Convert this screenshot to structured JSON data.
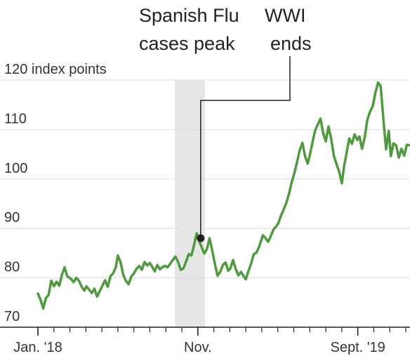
{
  "chart_data": {
    "type": "line",
    "title": "",
    "xlabel": "",
    "ylabel": "",
    "y_axis_unit_label": "120 index points",
    "ylim": [
      70,
      120
    ],
    "yticks": [
      {
        "value": 120,
        "label": "120 index points"
      },
      {
        "value": 110,
        "label": "110"
      },
      {
        "value": 100,
        "label": "100"
      },
      {
        "value": 90,
        "label": "90"
      },
      {
        "value": 80,
        "label": "80"
      },
      {
        "value": 70,
        "label": "70"
      }
    ],
    "x_tick_labels": [
      {
        "date": "1918-01",
        "label": "Jan. '18"
      },
      {
        "date": "1918-11",
        "label": "Nov."
      },
      {
        "date": "1919-09",
        "label": "Sept. '19"
      }
    ],
    "x_minor_ticks": [
      "1918-01",
      "1918-02",
      "1918-03",
      "1918-04",
      "1918-05",
      "1918-06",
      "1918-07",
      "1918-08",
      "1918-09",
      "1918-10",
      "1918-11",
      "1918-12",
      "1919-01",
      "1919-02",
      "1919-03",
      "1919-04",
      "1919-05",
      "1919-06",
      "1919-07",
      "1919-08",
      "1919-09",
      "1919-10",
      "1919-11",
      "1919-12"
    ],
    "xlim": [
      "1918-01",
      "1919-12"
    ],
    "grid": true,
    "line_color": "#4f9a3e",
    "shade_color": "#e6e6e6",
    "shaded_period": {
      "start": "1918-10",
      "end": "1918-11"
    },
    "annotations": [
      {
        "text": [
          "Spanish Flu",
          "cases peak"
        ],
        "date": "1918-10"
      },
      {
        "text": [
          "WWI",
          "ends"
        ],
        "date": "1918-11",
        "marker_value": 88
      }
    ],
    "series": [
      {
        "values": [
          [
            "1918-01-01",
            76.8
          ],
          [
            "1918-01-06",
            75.5
          ],
          [
            "1918-01-11",
            73.8
          ],
          [
            "1918-01-16",
            75.9
          ],
          [
            "1918-01-21",
            76.5
          ],
          [
            "1918-01-26",
            79.4
          ],
          [
            "1918-02-01",
            78.3
          ],
          [
            "1918-02-06",
            79.2
          ],
          [
            "1918-02-11",
            78.4
          ],
          [
            "1918-02-16",
            80.6
          ],
          [
            "1918-02-21",
            82.1
          ],
          [
            "1918-02-26",
            80.3
          ],
          [
            "1918-03-03",
            79.8
          ],
          [
            "1918-03-08",
            79.1
          ],
          [
            "1918-03-13",
            80.0
          ],
          [
            "1918-03-18",
            79.4
          ],
          [
            "1918-03-23",
            78.2
          ],
          [
            "1918-03-28",
            77.4
          ],
          [
            "1918-04-02",
            78.3
          ],
          [
            "1918-04-07",
            77.6
          ],
          [
            "1918-04-12",
            76.9
          ],
          [
            "1918-04-17",
            77.8
          ],
          [
            "1918-04-22",
            76.2
          ],
          [
            "1918-04-27",
            77.3
          ],
          [
            "1918-05-02",
            78.4
          ],
          [
            "1918-05-07",
            79.5
          ],
          [
            "1918-05-12",
            78.2
          ],
          [
            "1918-05-17",
            80.3
          ],
          [
            "1918-05-22",
            80.9
          ],
          [
            "1918-05-27",
            82.1
          ],
          [
            "1918-06-01",
            84.5
          ],
          [
            "1918-06-06",
            83.2
          ],
          [
            "1918-06-11",
            80.6
          ],
          [
            "1918-06-16",
            79.4
          ],
          [
            "1918-06-21",
            78.7
          ],
          [
            "1918-06-26",
            80.2
          ],
          [
            "1918-07-01",
            80.9
          ],
          [
            "1918-07-06",
            81.8
          ],
          [
            "1918-07-11",
            82.4
          ],
          [
            "1918-07-16",
            81.6
          ],
          [
            "1918-07-21",
            83.2
          ],
          [
            "1918-07-26",
            82.5
          ],
          [
            "1918-07-31",
            83.0
          ],
          [
            "1918-08-05",
            82.3
          ],
          [
            "1918-08-10",
            81.3
          ],
          [
            "1918-08-15",
            82.6
          ],
          [
            "1918-08-20",
            81.7
          ],
          [
            "1918-08-25",
            82.2
          ],
          [
            "1918-08-30",
            82.4
          ],
          [
            "1918-09-04",
            82.1
          ],
          [
            "1918-09-09",
            82.8
          ],
          [
            "1918-09-14",
            83.6
          ],
          [
            "1918-09-19",
            84.3
          ],
          [
            "1918-09-24",
            83.2
          ],
          [
            "1918-09-29",
            81.6
          ],
          [
            "1918-10-04",
            81.9
          ],
          [
            "1918-10-09",
            83.3
          ],
          [
            "1918-10-14",
            84.8
          ],
          [
            "1918-10-19",
            84.5
          ],
          [
            "1918-10-24",
            86.7
          ],
          [
            "1918-10-29",
            89.0
          ],
          [
            "1918-11-03",
            87.6
          ],
          [
            "1918-11-08",
            86.2
          ],
          [
            "1918-11-13",
            84.9
          ],
          [
            "1918-11-18",
            85.8
          ],
          [
            "1918-11-23",
            88.0
          ],
          [
            "1918-11-28",
            85.5
          ],
          [
            "1918-12-03",
            82.8
          ],
          [
            "1918-12-08",
            80.4
          ],
          [
            "1918-12-13",
            81.2
          ],
          [
            "1918-12-18",
            82.6
          ],
          [
            "1918-12-23",
            83.1
          ],
          [
            "1918-12-28",
            81.4
          ],
          [
            "1919-01-02",
            81.9
          ],
          [
            "1919-01-07",
            83.6
          ],
          [
            "1919-01-12",
            81.8
          ],
          [
            "1919-01-17",
            80.5
          ],
          [
            "1919-01-22",
            81.2
          ],
          [
            "1919-01-27",
            80.3
          ],
          [
            "1919-02-01",
            79.7
          ],
          [
            "1919-02-06",
            81.4
          ],
          [
            "1919-02-11",
            82.9
          ],
          [
            "1919-02-16",
            84.8
          ],
          [
            "1919-02-21",
            85.1
          ],
          [
            "1919-02-26",
            86.3
          ],
          [
            "1919-03-03",
            88.6
          ],
          [
            "1919-03-08",
            88.0
          ],
          [
            "1919-03-13",
            87.3
          ],
          [
            "1919-03-18",
            88.5
          ],
          [
            "1919-03-23",
            89.8
          ],
          [
            "1919-03-28",
            90.4
          ],
          [
            "1919-04-02",
            91.1
          ],
          [
            "1919-04-07",
            92.6
          ],
          [
            "1919-04-12",
            93.8
          ],
          [
            "1919-04-17",
            95.2
          ],
          [
            "1919-04-22",
            97.0
          ],
          [
            "1919-04-27",
            99.3
          ],
          [
            "1919-05-02",
            101.2
          ],
          [
            "1919-05-07",
            103.4
          ],
          [
            "1919-05-12",
            105.8
          ],
          [
            "1919-05-17",
            107.3
          ],
          [
            "1919-05-22",
            104.6
          ],
          [
            "1919-05-27",
            103.1
          ],
          [
            "1919-06-01",
            104.8
          ],
          [
            "1919-06-06",
            107.4
          ],
          [
            "1919-06-11",
            109.8
          ],
          [
            "1919-06-16",
            111.0
          ],
          [
            "1919-06-21",
            112.2
          ],
          [
            "1919-06-26",
            109.3
          ],
          [
            "1919-07-01",
            107.6
          ],
          [
            "1919-07-06",
            110.6
          ],
          [
            "1919-07-11",
            108.2
          ],
          [
            "1919-07-16",
            104.7
          ],
          [
            "1919-07-21",
            103.0
          ],
          [
            "1919-07-26",
            101.5
          ],
          [
            "1919-07-31",
            99.1
          ],
          [
            "1919-08-05",
            102.4
          ],
          [
            "1919-08-10",
            105.3
          ],
          [
            "1919-08-15",
            108.2
          ],
          [
            "1919-08-20",
            107.1
          ],
          [
            "1919-08-25",
            109.0
          ],
          [
            "1919-08-30",
            107.9
          ],
          [
            "1919-09-04",
            108.6
          ],
          [
            "1919-09-09",
            106.1
          ],
          [
            "1919-09-14",
            108.4
          ],
          [
            "1919-09-19",
            112.0
          ],
          [
            "1919-09-24",
            113.6
          ],
          [
            "1919-09-29",
            114.7
          ],
          [
            "1919-10-04",
            117.4
          ],
          [
            "1919-10-09",
            119.5
          ],
          [
            "1919-10-14",
            118.7
          ],
          [
            "1919-10-19",
            112.1
          ],
          [
            "1919-10-24",
            106.0
          ],
          [
            "1919-10-29",
            109.7
          ],
          [
            "1919-11-03",
            104.6
          ],
          [
            "1919-11-08",
            107.2
          ],
          [
            "1919-11-13",
            106.8
          ],
          [
            "1919-11-18",
            104.3
          ],
          [
            "1919-11-23",
            106.1
          ],
          [
            "1919-11-28",
            104.7
          ],
          [
            "1919-12-03",
            106.9
          ],
          [
            "1919-12-08",
            106.8
          ]
        ]
      }
    ]
  }
}
